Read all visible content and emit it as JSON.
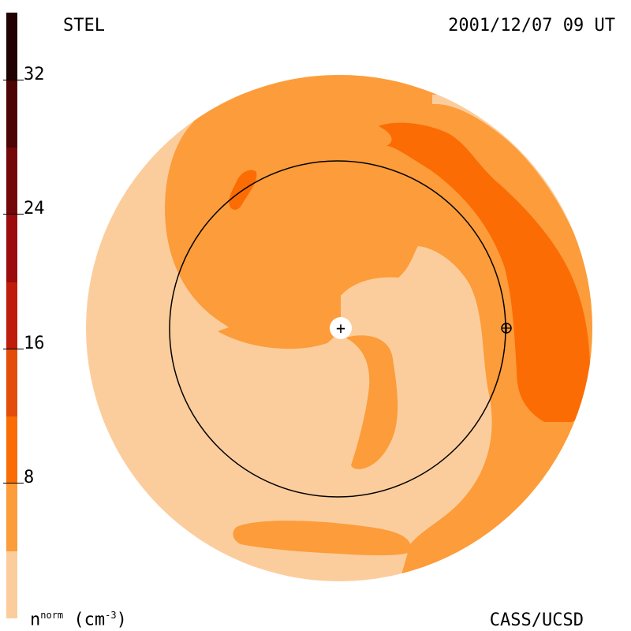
{
  "header": {
    "source": "STEL",
    "timestamp": "2001/12/07 09 UT"
  },
  "footer": {
    "credit": "CASS/UCSD",
    "unit_base": "n",
    "unit_sup": "norm",
    "unit_paren": "(cm",
    "unit_exp": "-3",
    "unit_close": ")"
  },
  "colorbar": {
    "ticks": [
      "32",
      "24",
      "16",
      "8"
    ],
    "levels": [
      {
        "min": 0,
        "max": 4,
        "color": "#fccd9c"
      },
      {
        "min": 4,
        "max": 8,
        "color": "#fc9c3a"
      },
      {
        "min": 8,
        "max": 12,
        "color": "#fc6c04"
      },
      {
        "min": 12,
        "max": 16,
        "color": "#e44c0a"
      },
      {
        "min": 16,
        "max": 20,
        "color": "#c01c0c"
      },
      {
        "min": 20,
        "max": 24,
        "color": "#9c0c0c"
      },
      {
        "min": 24,
        "max": 28,
        "color": "#740808"
      },
      {
        "min": 28,
        "max": 32,
        "color": "#4c0404"
      },
      {
        "min": 32,
        "max": 36,
        "color": "#200202"
      }
    ]
  },
  "colors": {
    "background": "#ffffff",
    "level_low": "#fccd9c",
    "level_mid": "#fc9c3a",
    "level_high": "#fc6c04"
  },
  "markers": {
    "sun_symbol": "+",
    "earth_symbol": "⊕"
  }
}
